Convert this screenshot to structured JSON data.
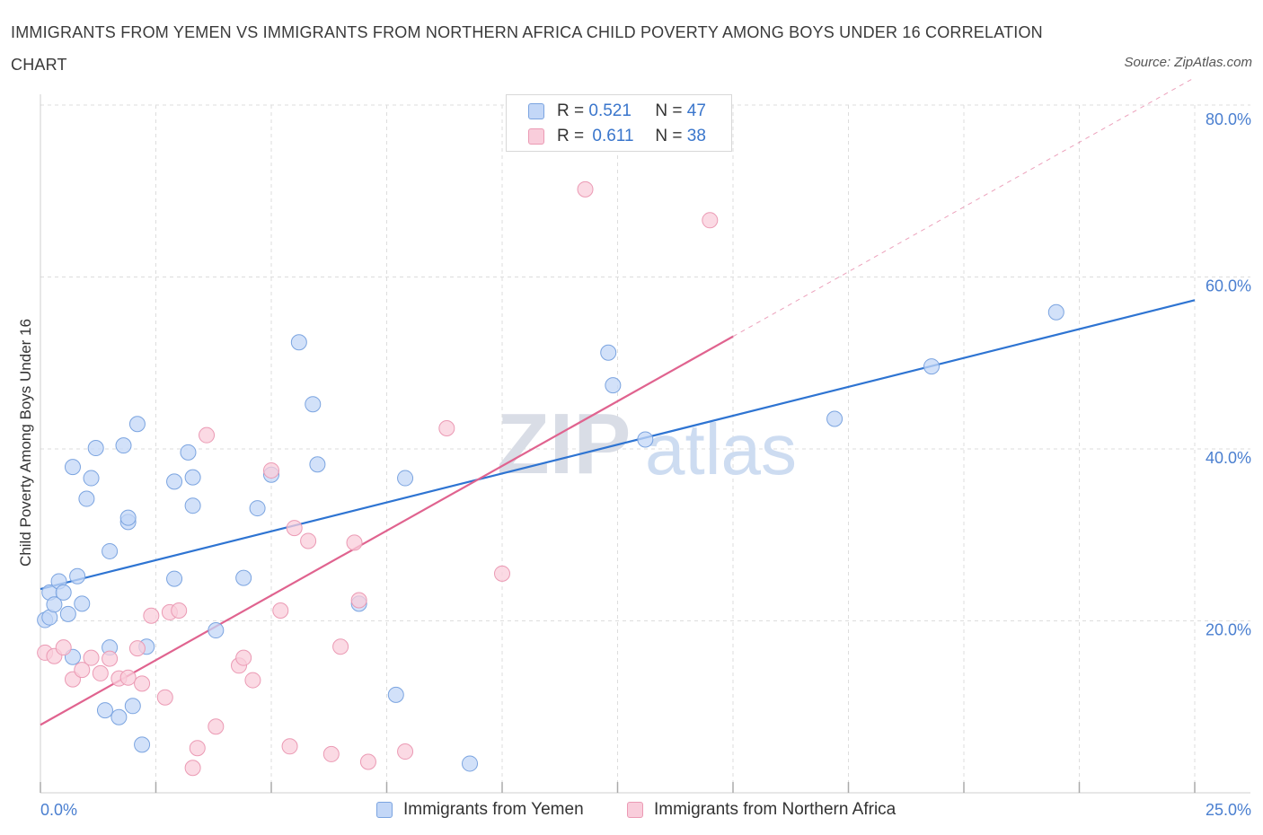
{
  "title": "IMMIGRANTS FROM YEMEN VS IMMIGRANTS FROM NORTHERN AFRICA CHILD POVERTY AMONG BOYS UNDER 16 CORRELATION CHART",
  "source": "Source: ZipAtlas.com",
  "watermark": {
    "zip": "ZIP",
    "atlas": "atlas"
  },
  "legend": {
    "rows": [
      {
        "r_label": "R = ",
        "r_value": "0.521",
        "n_label": "N = ",
        "n_value": "47"
      },
      {
        "r_label": "R = ",
        "r_value": "0.611",
        "n_label": "N = ",
        "n_value": "38"
      }
    ]
  },
  "bottom_legend": {
    "yemen": "Immigrants from Yemen",
    "nafrica": "Immigrants from Northern Africa"
  },
  "colors": {
    "blue_fill": "#c3d7f7",
    "blue_stroke": "#7ba4e0",
    "blue_line": "#2e74d2",
    "pink_fill": "#f9cddb",
    "pink_stroke": "#eb9ab4",
    "pink_line": "#e0638f",
    "tick_text": "#4a7fd0",
    "grid": "#dddddd"
  },
  "chart_data": {
    "type": "scatter",
    "title": "IMMIGRANTS FROM YEMEN VS IMMIGRANTS FROM NORTHERN AFRICA CHILD POVERTY AMONG BOYS UNDER 16 CORRELATION CHART",
    "xlabel": "",
    "ylabel": "Child Poverty Among Boys Under 16",
    "xlim": [
      0,
      25
    ],
    "ylim": [
      0,
      80
    ],
    "x_tick_labels": [
      "0.0%",
      "25.0%"
    ],
    "y_tick_labels": [
      "80.0%",
      "60.0%",
      "40.0%",
      "20.0%"
    ],
    "y_ticks": [
      80,
      60,
      40,
      20
    ],
    "grid": true,
    "legend_position": "top-center",
    "series": [
      {
        "name": "Immigrants from Yemen",
        "r": 0.521,
        "n": 47,
        "trend": {
          "x0": 0,
          "y0": 23.7,
          "x1": 25,
          "y1": 57.3,
          "solid_until": 25
        },
        "points": [
          [
            0.1,
            20.1
          ],
          [
            0.2,
            20.4
          ],
          [
            0.2,
            23.3
          ],
          [
            0.3,
            21.9
          ],
          [
            0.4,
            24.6
          ],
          [
            0.5,
            23.3
          ],
          [
            0.6,
            20.8
          ],
          [
            0.7,
            15.8
          ],
          [
            0.7,
            37.9
          ],
          [
            0.8,
            25.2
          ],
          [
            0.9,
            22.0
          ],
          [
            1.0,
            34.2
          ],
          [
            1.1,
            36.6
          ],
          [
            1.2,
            40.1
          ],
          [
            1.4,
            9.6
          ],
          [
            1.5,
            16.9
          ],
          [
            1.5,
            28.1
          ],
          [
            1.7,
            8.8
          ],
          [
            1.8,
            40.4
          ],
          [
            1.9,
            31.5
          ],
          [
            1.9,
            32.0
          ],
          [
            2.0,
            10.1
          ],
          [
            2.1,
            42.9
          ],
          [
            2.2,
            5.6
          ],
          [
            2.3,
            17.0
          ],
          [
            2.9,
            24.9
          ],
          [
            2.9,
            36.2
          ],
          [
            3.2,
            39.6
          ],
          [
            3.3,
            33.4
          ],
          [
            3.3,
            36.7
          ],
          [
            3.8,
            18.9
          ],
          [
            4.4,
            25.0
          ],
          [
            4.7,
            33.1
          ],
          [
            5.0,
            37.0
          ],
          [
            5.6,
            52.4
          ],
          [
            5.9,
            45.2
          ],
          [
            6.0,
            38.2
          ],
          [
            6.9,
            22.0
          ],
          [
            7.7,
            11.4
          ],
          [
            7.9,
            36.6
          ],
          [
            9.3,
            3.4
          ],
          [
            12.3,
            51.2
          ],
          [
            12.4,
            47.4
          ],
          [
            13.1,
            41.1
          ],
          [
            17.2,
            43.5
          ],
          [
            19.3,
            49.6
          ],
          [
            22.0,
            55.9
          ]
        ]
      },
      {
        "name": "Immigrants from Northern Africa",
        "r": 0.611,
        "n": 38,
        "trend": {
          "x0": 0,
          "y0": 7.9,
          "x1": 25,
          "y1": 83.2,
          "solid_until": 15
        },
        "points": [
          [
            0.1,
            16.3
          ],
          [
            0.3,
            15.9
          ],
          [
            0.5,
            16.9
          ],
          [
            0.7,
            13.2
          ],
          [
            0.9,
            14.3
          ],
          [
            1.1,
            15.7
          ],
          [
            1.3,
            13.9
          ],
          [
            1.5,
            15.6
          ],
          [
            1.7,
            13.3
          ],
          [
            1.9,
            13.4
          ],
          [
            2.1,
            16.8
          ],
          [
            2.2,
            12.7
          ],
          [
            2.4,
            20.6
          ],
          [
            2.7,
            11.1
          ],
          [
            2.8,
            21.0
          ],
          [
            3.0,
            21.2
          ],
          [
            3.3,
            2.9
          ],
          [
            3.4,
            5.2
          ],
          [
            3.6,
            41.6
          ],
          [
            3.8,
            7.7
          ],
          [
            4.3,
            14.8
          ],
          [
            4.4,
            15.7
          ],
          [
            4.6,
            13.1
          ],
          [
            5.0,
            37.5
          ],
          [
            5.2,
            21.2
          ],
          [
            5.4,
            5.4
          ],
          [
            5.5,
            30.8
          ],
          [
            5.8,
            29.3
          ],
          [
            6.3,
            4.5
          ],
          [
            6.5,
            17.0
          ],
          [
            6.8,
            29.1
          ],
          [
            6.9,
            22.4
          ],
          [
            7.1,
            3.6
          ],
          [
            7.9,
            4.8
          ],
          [
            8.8,
            42.4
          ],
          [
            10.0,
            25.5
          ],
          [
            11.8,
            70.2
          ],
          [
            14.5,
            66.6
          ]
        ]
      }
    ]
  }
}
